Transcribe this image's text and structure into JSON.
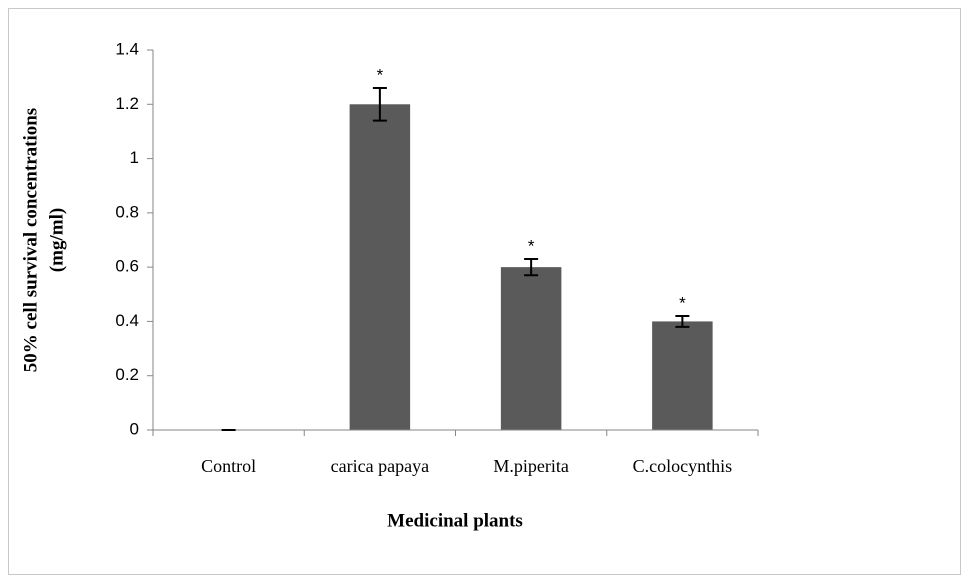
{
  "chart_data": {
    "type": "bar",
    "xlabel": "Medicinal plants",
    "ylabel": [
      "50% cell survival concentrations",
      "(mg/ml)"
    ],
    "categories": [
      "Control",
      "carica papaya",
      "M.piperita",
      "C.colocynthis"
    ],
    "values": [
      0,
      1.2,
      0.6,
      0.4
    ],
    "errors": [
      0,
      0.06,
      0.03,
      0.02
    ],
    "significance": [
      null,
      "*",
      "*",
      "*"
    ],
    "color": "#5a5a5a",
    "ylim": [
      0,
      1.4
    ],
    "yticks": [
      0,
      0.2,
      0.4,
      0.6,
      0.8,
      1,
      1.2,
      1.4
    ],
    "grid": false
  }
}
